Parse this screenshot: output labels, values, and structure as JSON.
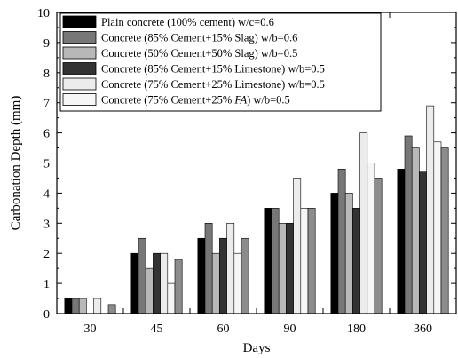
{
  "chart_data": {
    "type": "bar",
    "title": "",
    "xlabel": "Days",
    "ylabel": "Carbonation Depth (mm)",
    "ylim": [
      0,
      10
    ],
    "yticks": [
      0,
      1,
      2,
      3,
      4,
      5,
      6,
      7,
      8,
      9,
      10
    ],
    "grid": false,
    "legend_position": "top-left",
    "categories": [
      "30",
      "45",
      "60",
      "90",
      "180",
      "360"
    ],
    "series": [
      {
        "name": "Plain concrete (100% cement) w/c=0.6",
        "color": "#000000",
        "values": [
          0.5,
          2.0,
          2.5,
          3.5,
          4.0,
          4.8
        ]
      },
      {
        "name": "Concrete (85% Cement+15% Slag) w/b=0.6",
        "color": "#777777",
        "values": [
          0.5,
          2.5,
          3.0,
          3.5,
          4.8,
          5.9
        ]
      },
      {
        "name": "Concrete (50% Cement+50% Slag) w/b=0.5",
        "color": "#b8b8b8",
        "values": [
          0.5,
          1.5,
          2.0,
          3.0,
          4.0,
          5.5
        ]
      },
      {
        "name": "Concrete (85% Cement+15% Limestone) w/b=0.5",
        "color": "#333333",
        "values": [
          0.0,
          2.0,
          2.5,
          3.0,
          3.5,
          4.7
        ]
      },
      {
        "name": "Concrete (75% Cement+25% Limestone) w/b=0.5",
        "color": "#ececec",
        "values": [
          0.5,
          2.0,
          3.0,
          4.5,
          6.0,
          6.9
        ]
      },
      {
        "name_parts": [
          "Concrete (75% Cement+25% ",
          "FA",
          ") w/b=0.5"
        ],
        "color": "#f6f6f6",
        "values": [
          0.0,
          1.0,
          2.0,
          3.5,
          5.0,
          5.7
        ]
      },
      {
        "color": "#8c8c8c",
        "values": [
          0.3,
          1.8,
          2.5,
          3.5,
          4.5,
          5.5
        ]
      }
    ]
  }
}
